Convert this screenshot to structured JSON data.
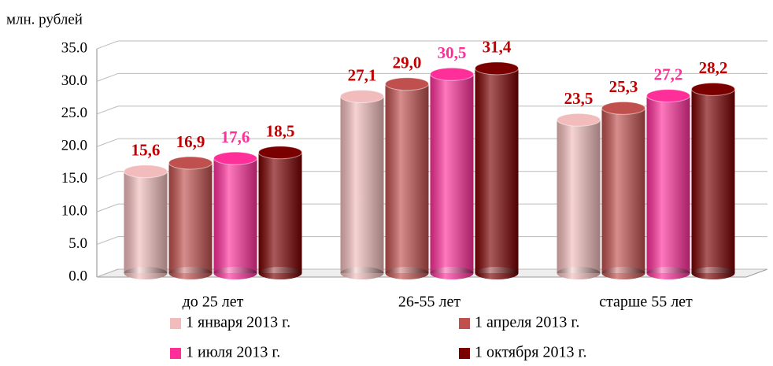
{
  "chart_data": {
    "type": "bar",
    "y_axis_label": "млн. рублей",
    "categories": [
      "до 25 лет",
      "26-55 лет",
      "старше 55 лет"
    ],
    "series": [
      {
        "name": "1 января 2013 г.",
        "color": "#f2bcbc",
        "label_color": "#c00000",
        "values": [
          15.6,
          27.1,
          23.5
        ],
        "value_labels": [
          "15,6",
          "27,1",
          "23,5"
        ]
      },
      {
        "name": "1 апреля 2013 г.",
        "color": "#c0504d",
        "label_color": "#c00000",
        "values": [
          16.9,
          29.0,
          25.3
        ],
        "value_labels": [
          "16,9",
          "29,0",
          "25,3"
        ]
      },
      {
        "name": "1 июля 2013 г.",
        "color": "#ff2f9a",
        "label_color": "#ff2f9a",
        "values": [
          17.6,
          30.5,
          27.2
        ],
        "value_labels": [
          "17,6",
          "30,5",
          "27,2"
        ]
      },
      {
        "name": "1 октября 2013 г.",
        "color": "#7a0000",
        "label_color": "#c00000",
        "values": [
          18.5,
          31.4,
          28.2
        ],
        "value_labels": [
          "18,5",
          "31,4",
          "28,2"
        ]
      }
    ],
    "ylim": [
      0,
      35
    ],
    "yticks": [
      {
        "value": 0,
        "label": "0.0"
      },
      {
        "value": 5,
        "label": "5.0"
      },
      {
        "value": 10,
        "label": "10.0"
      },
      {
        "value": 15,
        "label": "15.0"
      },
      {
        "value": 20,
        "label": "20.0"
      },
      {
        "value": 25,
        "label": "25.0"
      },
      {
        "value": 30,
        "label": "30.0"
      },
      {
        "value": 35,
        "label": "35.0"
      }
    ],
    "grid": true
  }
}
